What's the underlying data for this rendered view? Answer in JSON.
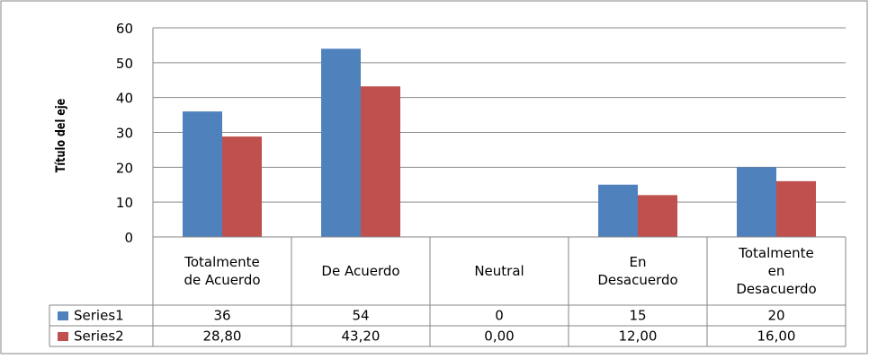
{
  "chart_data": {
    "type": "bar",
    "ylabel": "Título del eje",
    "ylim": [
      0,
      60
    ],
    "yticks": [
      0,
      10,
      20,
      30,
      40,
      50,
      60
    ],
    "grid": true,
    "legend": "data-table",
    "categories": [
      [
        "Totalmente",
        "de Acuerdo"
      ],
      [
        "De Acuerdo"
      ],
      [
        "Neutral"
      ],
      [
        "En",
        "Desacuerdo"
      ],
      [
        "Totalmente",
        "en",
        "Desacuerdo"
      ]
    ],
    "series": [
      {
        "name": "Series1",
        "color": "#4F81BD",
        "values": [
          36,
          54,
          0,
          15,
          20
        ],
        "labels": [
          "36",
          "54",
          "0",
          "15",
          "20"
        ]
      },
      {
        "name": "Series2",
        "color": "#C0504D",
        "values": [
          28.8,
          43.2,
          0,
          12,
          16
        ],
        "labels": [
          "28,80",
          "43,20",
          "0,00",
          "12,00",
          "16,00"
        ]
      }
    ]
  }
}
